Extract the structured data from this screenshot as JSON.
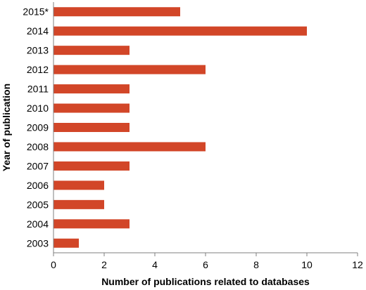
{
  "chart_data": {
    "type": "bar",
    "orientation": "horizontal",
    "title": "",
    "xlabel": "Number of publications related to databases",
    "ylabel": "Year of publication",
    "categories": [
      "2015*",
      "2014",
      "2013",
      "2012",
      "2011",
      "2010",
      "2009",
      "2008",
      "2007",
      "2006",
      "2005",
      "2004",
      "2003"
    ],
    "series": [
      {
        "values": [
          5,
          10,
          3,
          6,
          3,
          3,
          3,
          6,
          3,
          2,
          2,
          3,
          1
        ]
      }
    ],
    "xlim": [
      0,
      12
    ],
    "xticks": [
      "0",
      "2",
      "4",
      "6",
      "8",
      "10",
      "12"
    ],
    "grid": false,
    "legend": "none",
    "bar_color": "#d24628"
  }
}
